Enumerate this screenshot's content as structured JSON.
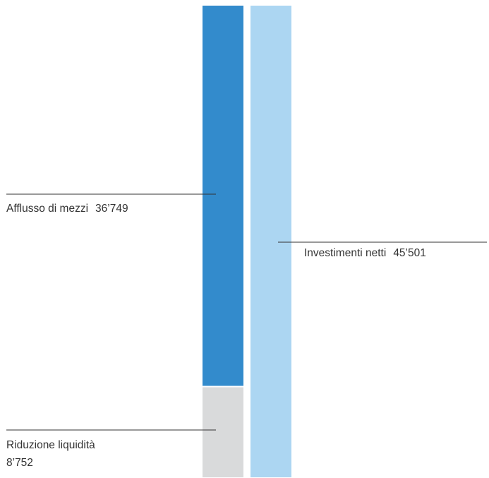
{
  "chart_data": {
    "type": "bar",
    "stacked": true,
    "bars": [
      {
        "segments": [
          {
            "label": "Riduzione liquidità",
            "value": 8752,
            "value_label": "8’752",
            "color": "#d9dadb"
          },
          {
            "label": "Afflusso di mezzi",
            "value": 36749,
            "value_label": "36’749",
            "color": "#338bcc"
          }
        ]
      },
      {
        "segments": [
          {
            "label": "Investimenti netti",
            "value": 45501,
            "value_label": "45’501",
            "color": "#acd6f2"
          }
        ]
      }
    ],
    "ylim": [
      0,
      45501
    ],
    "grid": false,
    "legend": "none"
  }
}
